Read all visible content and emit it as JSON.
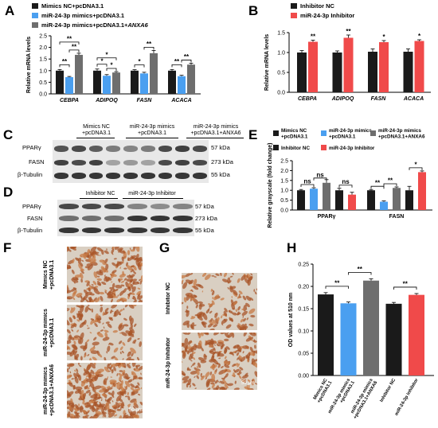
{
  "panels": {
    "A": "A",
    "B": "B",
    "C": "C",
    "D": "D",
    "E": "E",
    "F": "F",
    "G": "G",
    "H": "H"
  },
  "colors": {
    "black": "#1a1a1a",
    "blue": "#4a9ff0",
    "gray": "#6e6e6e",
    "red": "#f04a4a"
  },
  "panelA": {
    "legend": [
      "Mimics NC+pcDNA3.1",
      "miR-24-3p mimics+pcDNA3.1",
      "miR-24-3p mimics+pcDNA3.1+ANXA6"
    ],
    "sig": [
      [
        "**",
        "**",
        "**"
      ],
      [
        "*",
        "*",
        "*"
      ],
      [
        "*",
        "**",
        ""
      ],
      [
        "**",
        "**",
        ""
      ]
    ],
    "chart_data": {
      "type": "bar",
      "ylabel": "Relative mRNA levels",
      "ylim": [
        0,
        2.5
      ],
      "yticks": [
        "0.0",
        "0.5",
        "1.0",
        "1.5",
        "2.0",
        "2.5"
      ],
      "categories": [
        "CEBPA",
        "ADIPOQ",
        "FASN",
        "ACACA"
      ],
      "series": [
        {
          "name": "Mimics NC+pcDNA3.1",
          "values": [
            1.0,
            1.0,
            1.0,
            1.0
          ],
          "err": [
            0.05,
            0.07,
            0.04,
            0.05
          ]
        },
        {
          "name": "miR-24-3p mimics+pcDNA3.1",
          "values": [
            0.72,
            0.78,
            0.88,
            0.76
          ],
          "err": [
            0.03,
            0.05,
            0.05,
            0.04
          ]
        },
        {
          "name": "miR-24-3p mimics+pcDNA3.1+ANXA6",
          "values": [
            1.68,
            0.92,
            1.75,
            1.26
          ],
          "err": [
            0.07,
            0.04,
            0.12,
            0.06
          ]
        }
      ]
    }
  },
  "panelB": {
    "legend": [
      "Inhibitor NC",
      "miR-24-3p Inhibitor"
    ],
    "sig": [
      "**",
      "**",
      "*",
      "*"
    ],
    "chart_data": {
      "type": "bar",
      "ylabel": "Relative mRNA levels",
      "ylim": [
        0,
        1.5
      ],
      "yticks": [
        "0.0",
        "0.5",
        "1.0",
        "1.5"
      ],
      "categories": [
        "CEBPA",
        "ADIPOQ",
        "FASN",
        "ACACA"
      ],
      "series": [
        {
          "name": "Inhibitor NC",
          "values": [
            1.0,
            1.0,
            1.02,
            1.02
          ],
          "err": [
            0.05,
            0.04,
            0.07,
            0.07
          ]
        },
        {
          "name": "miR-24-3p Inhibitor",
          "values": [
            1.27,
            1.37,
            1.26,
            1.29
          ],
          "err": [
            0.04,
            0.07,
            0.04,
            0.03
          ]
        }
      ]
    }
  },
  "panelC": {
    "headers": [
      "Mimics NC\n+pcDNA3.1",
      "miR-24-3p mimics\n+pcDNA3.1",
      "miR-24-3p mimics\n+pcDNA3.1+ANXA6"
    ],
    "rows": [
      "PPARγ",
      "FASN",
      "β-Tubulin"
    ],
    "kda": [
      "57 kDa",
      "273 kDa",
      "55 kDa"
    ]
  },
  "panelD": {
    "headers": [
      "Inhibitor NC",
      "miR-24-3p Inhibitor"
    ],
    "rows": [
      "PPARγ",
      "FASN",
      "β-Tubulin"
    ],
    "kda": [
      "57 kDa",
      "273 kDa",
      "55 kDa"
    ]
  },
  "panelE": {
    "legend": [
      "Mimics NC\n+pcDNA3.1",
      "miR-24-3p mimics\n+pcDNA3.1",
      "miR-24-3p mimics\n+pcDNA3.1+ANXA6",
      "Inhibitor NC",
      "miR-24-3p Inhibitor"
    ],
    "sig": [
      "ns",
      "ns",
      "ns",
      "**",
      "**",
      "*"
    ],
    "chart_data": {
      "type": "bar",
      "ylabel": "Relative grayscale (fold change)",
      "ylim": [
        0,
        2.5
      ],
      "yticks": [
        "0.0",
        "0.5",
        "1.0",
        "1.5",
        "2.0",
        "2.5"
      ],
      "categories": [
        "PPARγ",
        "FASN"
      ],
      "series": [
        {
          "name": "Mimics NC+pcDNA3.1",
          "values": [
            1.0,
            1.0
          ],
          "err": [
            0.04,
            0.04
          ]
        },
        {
          "name": "miR-24-3p mimics+pcDNA3.1",
          "values": [
            1.08,
            0.42
          ],
          "err": [
            0.05,
            0.04
          ]
        },
        {
          "name": "miR-24-3p mimics+pcDNA3.1+ANXA6",
          "values": [
            1.38,
            1.12
          ],
          "err": [
            0.16,
            0.05
          ]
        },
        {
          "name": "Inhibitor NC",
          "values": [
            1.0,
            1.0
          ],
          "err": [
            0.1,
            0.2
          ]
        },
        {
          "name": "miR-24-3p Inhibitor",
          "values": [
            0.78,
            1.92
          ],
          "err": [
            0.12,
            0.06
          ]
        }
      ]
    }
  },
  "panelF": {
    "labels": [
      "Mimics NC\n+pcDNA3.1",
      "miR-24-3p mimics\n+pcDNA3.1",
      "miR-24-3p mimics\n+pcDNA3.1+ANXA6"
    ],
    "scale": "50 μm"
  },
  "panelG": {
    "labels": [
      "Inhibitor NC",
      "miR-24-3p Inhibitor"
    ],
    "scale": "50 μm"
  },
  "panelH": {
    "sig": [
      "**",
      "**",
      "**"
    ],
    "chart_data": {
      "type": "bar",
      "ylabel": "OD values at 510 nm",
      "ylim": [
        0,
        0.25
      ],
      "yticks": [
        "0.00",
        "0.05",
        "0.10",
        "0.15",
        "0.20",
        "0.25"
      ],
      "categories": [
        "Mimics NC\n+pcDNA3.1",
        "miR-24-3p mimics\n+pcDNA3.1",
        "miR-24-3p mimics\n+pcDNA3.1+ANXA6",
        "Inhibitor NC",
        "miR-24-3p Inhibitor"
      ],
      "values": [
        0.182,
        0.162,
        0.213,
        0.161,
        0.181
      ],
      "err": [
        0.004,
        0.003,
        0.004,
        0.003,
        0.003
      ]
    }
  }
}
